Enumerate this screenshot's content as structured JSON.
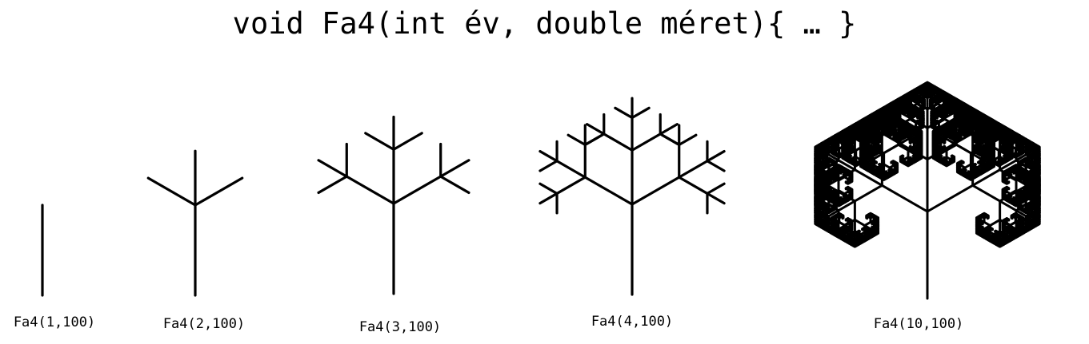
{
  "title": "void Fa4(int év, double méret){ … }",
  "trees": [
    {
      "caption": "Fa4(1,100)",
      "age": 1,
      "size": 100
    },
    {
      "caption": "Fa4(2,100)",
      "age": 2,
      "size": 100
    },
    {
      "caption": "Fa4(3,100)",
      "age": 3,
      "size": 100
    },
    {
      "caption": "Fa4(4,100)",
      "age": 4,
      "size": 100
    },
    {
      "caption": "Fa4(10,100)",
      "age": 10,
      "size": 100
    }
  ],
  "stroke_color": "#000000"
}
